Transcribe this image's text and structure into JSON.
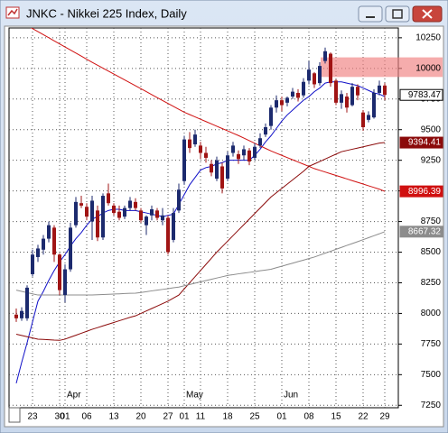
{
  "chart_data": {
    "type": "candlestick",
    "title": "JNKC - Nikkei 225 Index, Daily",
    "categories": [
      null,
      null,
      null,
      "23",
      null,
      null,
      null,
      null,
      "30",
      "01",
      null,
      null,
      null,
      "06",
      null,
      null,
      null,
      null,
      "13",
      null,
      null,
      null,
      null,
      "20",
      null,
      null,
      null,
      null,
      "27",
      null,
      null,
      "01",
      null,
      null,
      "11",
      null,
      null,
      null,
      null,
      "18",
      null,
      null,
      null,
      null,
      "25",
      null,
      null,
      null,
      null,
      "01",
      null,
      null,
      null,
      null,
      "08",
      null,
      null,
      null,
      null,
      "15",
      null,
      null,
      null,
      null,
      "22",
      null,
      null,
      null,
      "29"
    ],
    "months": [
      null,
      null,
      null,
      null,
      null,
      null,
      null,
      null,
      null,
      "Apr",
      null,
      null,
      null,
      null,
      null,
      null,
      null,
      null,
      null,
      null,
      null,
      null,
      null,
      null,
      null,
      null,
      null,
      null,
      null,
      null,
      null,
      "May",
      null,
      null,
      null,
      null,
      null,
      null,
      null,
      null,
      null,
      null,
      null,
      null,
      null,
      null,
      null,
      null,
      null,
      "Jun",
      null,
      null,
      null,
      null,
      null,
      null,
      null,
      null,
      null,
      null,
      null,
      null,
      null,
      null,
      null,
      null,
      null,
      null,
      null
    ],
    "ohlc": [
      [
        7990,
        8040,
        7930,
        7960
      ],
      [
        7960,
        8050,
        7940,
        8020
      ],
      [
        7960,
        8230,
        7940,
        8210
      ],
      [
        8320,
        8520,
        8300,
        8480
      ],
      [
        8460,
        8560,
        8420,
        8530
      ],
      [
        8520,
        8640,
        8480,
        8610
      ],
      [
        8610,
        8750,
        8580,
        8720
      ],
      [
        8700,
        8720,
        8420,
        8480
      ],
      [
        8480,
        8490,
        8150,
        8190
      ],
      [
        8150,
        8400,
        8090,
        8360
      ],
      [
        8360,
        8740,
        8340,
        8700
      ],
      [
        8720,
        8950,
        8700,
        8910
      ],
      [
        8900,
        8960,
        8860,
        8880
      ],
      [
        8870,
        8900,
        8760,
        8790
      ],
      [
        8750,
        8960,
        8600,
        8920
      ],
      [
        8840,
        8880,
        8590,
        8620
      ],
      [
        8620,
        8980,
        8600,
        8960
      ],
      [
        8980,
        9060,
        8880,
        8900
      ],
      [
        8880,
        8900,
        8800,
        8820
      ],
      [
        8830,
        8880,
        8760,
        8780
      ],
      [
        8790,
        8880,
        8770,
        8860
      ],
      [
        8860,
        8950,
        8840,
        8920
      ],
      [
        8910,
        8940,
        8840,
        8860
      ],
      [
        8840,
        8860,
        8740,
        8760
      ],
      [
        8720,
        8800,
        8640,
        8790
      ],
      [
        8800,
        8880,
        8760,
        8850
      ],
      [
        8840,
        8860,
        8760,
        8780
      ],
      [
        8760,
        8860,
        8720,
        8800
      ],
      [
        8780,
        8800,
        8480,
        8500
      ],
      [
        8600,
        8860,
        8580,
        8820
      ],
      [
        8840,
        9060,
        8820,
        9010
      ],
      [
        9080,
        9450,
        9050,
        9420
      ],
      [
        9420,
        9480,
        9310,
        9350
      ],
      [
        9380,
        9500,
        9360,
        9460
      ],
      [
        9370,
        9400,
        9260,
        9310
      ],
      [
        9310,
        9360,
        9230,
        9270
      ],
      [
        9220,
        9250,
        9120,
        9150
      ],
      [
        9100,
        9280,
        9080,
        9250
      ],
      [
        9200,
        9230,
        8980,
        9020
      ],
      [
        9100,
        9320,
        9080,
        9290
      ],
      [
        9310,
        9400,
        9280,
        9370
      ],
      [
        9300,
        9330,
        9220,
        9260
      ],
      [
        9290,
        9370,
        9250,
        9340
      ],
      [
        9330,
        9350,
        9210,
        9240
      ],
      [
        9270,
        9390,
        9250,
        9360
      ],
      [
        9370,
        9470,
        9350,
        9430
      ],
      [
        9460,
        9550,
        9440,
        9520
      ],
      [
        9530,
        9700,
        9500,
        9680
      ],
      [
        9680,
        9780,
        9640,
        9740
      ],
      [
        9740,
        9770,
        9650,
        9700
      ],
      [
        9720,
        9770,
        9690,
        9760
      ],
      [
        9770,
        9840,
        9750,
        9810
      ],
      [
        9800,
        9830,
        9730,
        9760
      ],
      [
        9780,
        9920,
        9760,
        9890
      ],
      [
        9900,
        10060,
        9870,
        9990
      ],
      [
        9960,
        9970,
        9840,
        9870
      ],
      [
        9880,
        10050,
        9860,
        10020
      ],
      [
        10060,
        10170,
        10040,
        10140
      ],
      [
        10120,
        10130,
        9850,
        9880
      ],
      [
        9900,
        9910,
        9700,
        9720
      ],
      [
        9720,
        9820,
        9670,
        9790
      ],
      [
        9770,
        9800,
        9640,
        9680
      ],
      [
        9700,
        9880,
        9690,
        9850
      ],
      [
        9850,
        9870,
        9740,
        9780
      ],
      [
        9640,
        9660,
        9490,
        9520
      ],
      [
        9580,
        9650,
        9560,
        9620
      ],
      [
        9600,
        9830,
        9590,
        9800
      ],
      [
        9800,
        9900,
        9780,
        9860
      ],
      [
        9860,
        9880,
        9740,
        9783.47
      ]
    ],
    "up_color": "#1c2a6e",
    "down_color": "#a01414",
    "close_tag": true,
    "lines": [
      {
        "color": "#1010c8",
        "last_value_tag": false,
        "values": [
          7430,
          7600,
          7760,
          7930,
          8100,
          8180,
          8270,
          8350,
          8420,
          8480,
          8550,
          8610,
          8660,
          8720,
          8770,
          8790,
          8820,
          8840,
          8850,
          8850,
          8840,
          8840,
          8840,
          8830,
          8820,
          8810,
          8800,
          8790,
          8800,
          8810,
          8890,
          8970,
          9050,
          9110,
          9170,
          9190,
          9200,
          9220,
          9230,
          9250,
          9250,
          9250,
          9250,
          9250,
          9290,
          9340,
          9400,
          9450,
          9510,
          9570,
          9620,
          9660,
          9700,
          9740,
          9770,
          9810,
          9840,
          9880,
          9890,
          9890,
          9890,
          9880,
          9870,
          9860,
          9840,
          9820,
          9800,
          9790,
          9770
        ]
      },
      {
        "color": "#d01010",
        "last_value_tag": true,
        "values": [
          10400,
          10375,
          10350,
          10325,
          10300,
          10275,
          10250,
          10225,
          10200,
          10175,
          10150,
          10125,
          10100,
          10075,
          10050,
          10026,
          10002,
          9978,
          9954,
          9930,
          9906,
          9882,
          9858,
          9834,
          9810,
          9786,
          9762,
          9738,
          9714,
          9690,
          9666,
          9642,
          9623,
          9604,
          9585,
          9566,
          9547,
          9528,
          9509,
          9490,
          9471,
          9452,
          9431,
          9410,
          9389,
          9368,
          9347,
          9326,
          9308,
          9290,
          9272,
          9254,
          9236,
          9218,
          9200,
          9182,
          9168,
          9154,
          9140,
          9126,
          9112,
          9098,
          9084,
          9070,
          9056,
          9042,
          9028,
          9014,
          8996.39
        ]
      },
      {
        "color": "#8b0a0a",
        "last_value_tag": true,
        "values": [
          7830,
          7820,
          7810,
          7800,
          7790,
          7788,
          7785,
          7782,
          7780,
          7790,
          7806,
          7822,
          7838,
          7854,
          7870,
          7884,
          7898,
          7912,
          7926,
          7940,
          7954,
          7968,
          7980,
          8000,
          8020,
          8040,
          8060,
          8080,
          8100,
          8125,
          8150,
          8200,
          8250,
          8300,
          8350,
          8400,
          8450,
          8500,
          8545,
          8590,
          8635,
          8680,
          8725,
          8770,
          8815,
          8860,
          8905,
          8950,
          8985,
          9020,
          9055,
          9090,
          9125,
          9160,
          9200,
          9220,
          9240,
          9260,
          9280,
          9300,
          9320,
          9330,
          9340,
          9350,
          9360,
          9370,
          9380,
          9390,
          9394.41
        ]
      },
      {
        "color": "#8c8c8c",
        "last_value_tag": true,
        "values": [
          8190,
          8180,
          8170,
          8160,
          8150,
          8150,
          8150,
          8150,
          8150,
          8150,
          8150,
          8150,
          8150,
          8150,
          8150,
          8152,
          8154,
          8156,
          8158,
          8160,
          8162,
          8164,
          8165,
          8171,
          8177,
          8184,
          8190,
          8196,
          8202,
          8209,
          8215,
          8226,
          8236,
          8247,
          8257,
          8268,
          8278,
          8289,
          8299,
          8310,
          8316,
          8323,
          8329,
          8335,
          8341,
          8348,
          8354,
          8360,
          8373,
          8385,
          8398,
          8410,
          8423,
          8435,
          8448,
          8460,
          8476,
          8492,
          8507,
          8523,
          8539,
          8555,
          8570,
          8586,
          8602,
          8618,
          8634,
          8650,
          8667.32
        ]
      }
    ],
    "highlight_band": [
      9930,
      10090
    ],
    "ylim": [
      7230,
      10330
    ],
    "yticks": [
      7250,
      7500,
      7750,
      8000,
      8250,
      8500,
      8750,
      9000,
      9250,
      9500,
      9750,
      10000,
      10250
    ],
    "grid": true
  }
}
